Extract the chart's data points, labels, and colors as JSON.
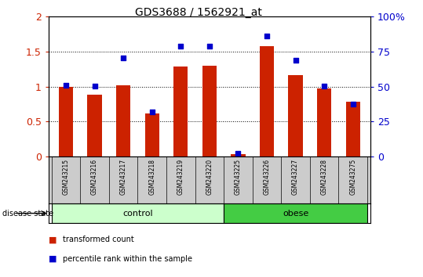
{
  "title": "GDS3688 / 1562921_at",
  "samples": [
    "GSM243215",
    "GSM243216",
    "GSM243217",
    "GSM243218",
    "GSM243219",
    "GSM243220",
    "GSM243225",
    "GSM243226",
    "GSM243227",
    "GSM243228",
    "GSM243275"
  ],
  "transformed_count": [
    1.0,
    0.88,
    1.02,
    0.62,
    1.29,
    1.3,
    0.03,
    1.58,
    1.16,
    0.97,
    0.78
  ],
  "percentile_rank_left": [
    1.02,
    1.01,
    1.41,
    0.64,
    1.58,
    1.58,
    0.04,
    1.72,
    1.38,
    1.01,
    0.75
  ],
  "bar_color": "#cc2200",
  "dot_color": "#0000cc",
  "ylim_left": [
    0,
    2
  ],
  "yticks_left": [
    0,
    0.5,
    1.0,
    1.5,
    2.0
  ],
  "ytick_labels_left": [
    "0",
    "0.5",
    "1",
    "1.5",
    "2"
  ],
  "ytick_labels_right": [
    "0",
    "25",
    "50",
    "75",
    "100%"
  ],
  "groups": [
    {
      "label": "control",
      "start": 0,
      "end": 5,
      "color": "#ccffcc"
    },
    {
      "label": "obese",
      "start": 6,
      "end": 10,
      "color": "#44cc44"
    }
  ],
  "disease_state_label": "disease state",
  "legend_items": [
    {
      "label": "transformed count",
      "color": "#cc2200"
    },
    {
      "label": "percentile rank within the sample",
      "color": "#0000cc"
    }
  ],
  "bar_width": 0.5,
  "dot_size": 25
}
